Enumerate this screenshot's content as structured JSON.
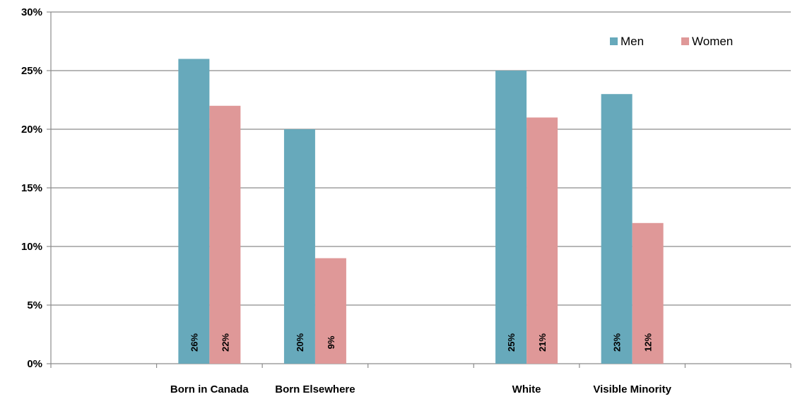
{
  "chart_data": {
    "type": "bar",
    "slots": [
      "",
      "Born in Canada",
      "Born Elsewhere",
      "",
      "White",
      "Visible Minority",
      ""
    ],
    "series": [
      {
        "name": "Men",
        "color": "#67a9bb",
        "values": [
          null,
          26,
          20,
          null,
          25,
          23,
          null
        ]
      },
      {
        "name": "Women",
        "color": "#df9898",
        "values": [
          null,
          22,
          9,
          null,
          21,
          12,
          null
        ]
      }
    ],
    "ylim": [
      0,
      30
    ],
    "yticks": [
      0,
      5,
      10,
      15,
      20,
      25,
      30
    ],
    "tick_suffix": "%",
    "data_label_suffix": "%",
    "grid": true,
    "legend": "top-right",
    "title": "",
    "xlabel": "",
    "ylabel": ""
  }
}
